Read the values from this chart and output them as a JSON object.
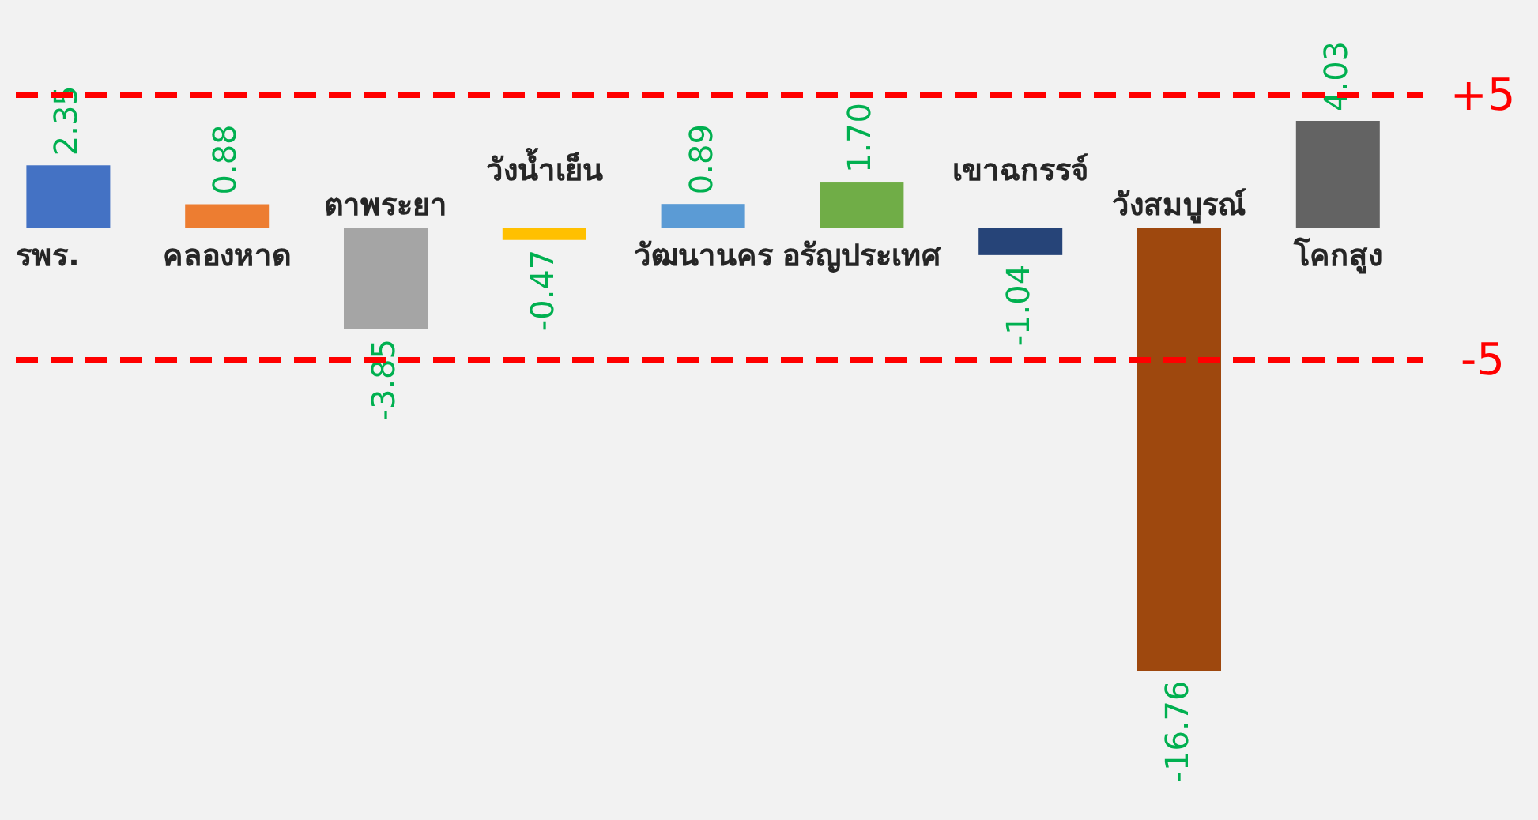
{
  "chart_data": {
    "type": "bar",
    "categories": [
      "รพร.",
      "คลองหาด",
      "ตาพระยา",
      "วังน้ำเย็น",
      "วัฒนานคร",
      "อรัญประเทศ",
      "เขาฉกรรจ์",
      "วังสมบูรณ์",
      "โคกสูง"
    ],
    "values": [
      2.35,
      0.88,
      -3.85,
      -0.47,
      0.89,
      1.7,
      -1.04,
      -16.76,
      4.03
    ],
    "colors": [
      "#4472c4",
      "#ed7d31",
      "#a5a5a5",
      "#ffc000",
      "#5b9bd5",
      "#70ad47",
      "#264478",
      "#9e480e",
      "#636363"
    ],
    "value_labels": [
      "2.35",
      "0.88",
      "-3.85",
      "-0.47",
      "0.89",
      "1.70",
      "-1.04",
      "-16.76",
      "4.03"
    ],
    "ref_lines": [
      {
        "axis": "y",
        "value": 5,
        "label": "+5",
        "color": "#ff0000",
        "line_style": "dashed"
      },
      {
        "axis": "y",
        "value": -5,
        "label": "-5",
        "color": "#ff0000",
        "line_style": "dashed"
      }
    ]
  }
}
